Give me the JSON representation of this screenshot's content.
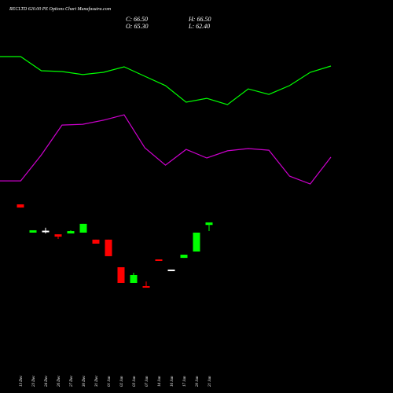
{
  "chart_data": [
    {
      "type": "candlestick",
      "title": "RECLTD 620.00 PE Options Chart Munafasutra.com",
      "header": [
        "C: 66.50",
        "H: 66.50",
        "O: 65.30",
        "L: 62.40"
      ],
      "categories": [
        "13 Dec",
        "23 Dec",
        "24 Dec",
        "26 Dec",
        "27 Dec",
        "30 Dec",
        "31 Dec",
        "01 Jan",
        "02 Jan",
        "03 Jan",
        "07 Jan",
        "14 Jan",
        "16 Jan",
        "17 Jan",
        "20 Jan",
        "21 Jan"
      ],
      "open": [
        75.0,
        61.7,
        62.6,
        60.9,
        61.3,
        61.7,
        58.4,
        58.4,
        45.4,
        38.0,
        36.5,
        49.1,
        44.3,
        49.8,
        52.8,
        65.3
      ],
      "high": [
        75.0,
        62.8,
        64.0,
        60.9,
        62.8,
        65.8,
        58.4,
        58.4,
        45.4,
        42.8,
        38.7,
        49.1,
        44.3,
        51.3,
        61.7,
        66.5
      ],
      "low": [
        73.5,
        61.7,
        61.3,
        58.7,
        61.3,
        61.7,
        56.5,
        50.6,
        38.0,
        38.0,
        35.8,
        48.4,
        44.3,
        49.8,
        52.8,
        62.4
      ],
      "close": [
        73.5,
        62.8,
        62.6,
        59.8,
        62.4,
        65.8,
        56.5,
        50.6,
        38.0,
        41.7,
        35.8,
        48.4,
        44.3,
        51.3,
        61.7,
        66.5
      ],
      "up_color": "#00ff00",
      "down_color": "#ff0000",
      "flat_color": "#ffffff",
      "ylim": [
        30,
        80
      ]
    },
    {
      "type": "line",
      "series": [
        {
          "color": "#00ff00",
          "values": [
            72.3,
            72.3,
            65.4,
            65.0,
            63.5,
            64.6,
            67.3,
            62.7,
            58.1,
            50.0,
            51.9,
            48.8,
            56.5,
            53.8,
            58.1,
            64.6,
            67.7
          ]
        },
        {
          "color": "#cc00cc",
          "values": [
            11.5,
            11.5,
            24.2,
            38.8,
            39.2,
            41.2,
            43.8,
            27.7,
            19.2,
            26.9,
            22.7,
            26.2,
            27.3,
            26.5,
            13.8,
            10.0,
            23.1
          ]
        }
      ],
      "ylim": [
        0,
        100
      ]
    }
  ]
}
